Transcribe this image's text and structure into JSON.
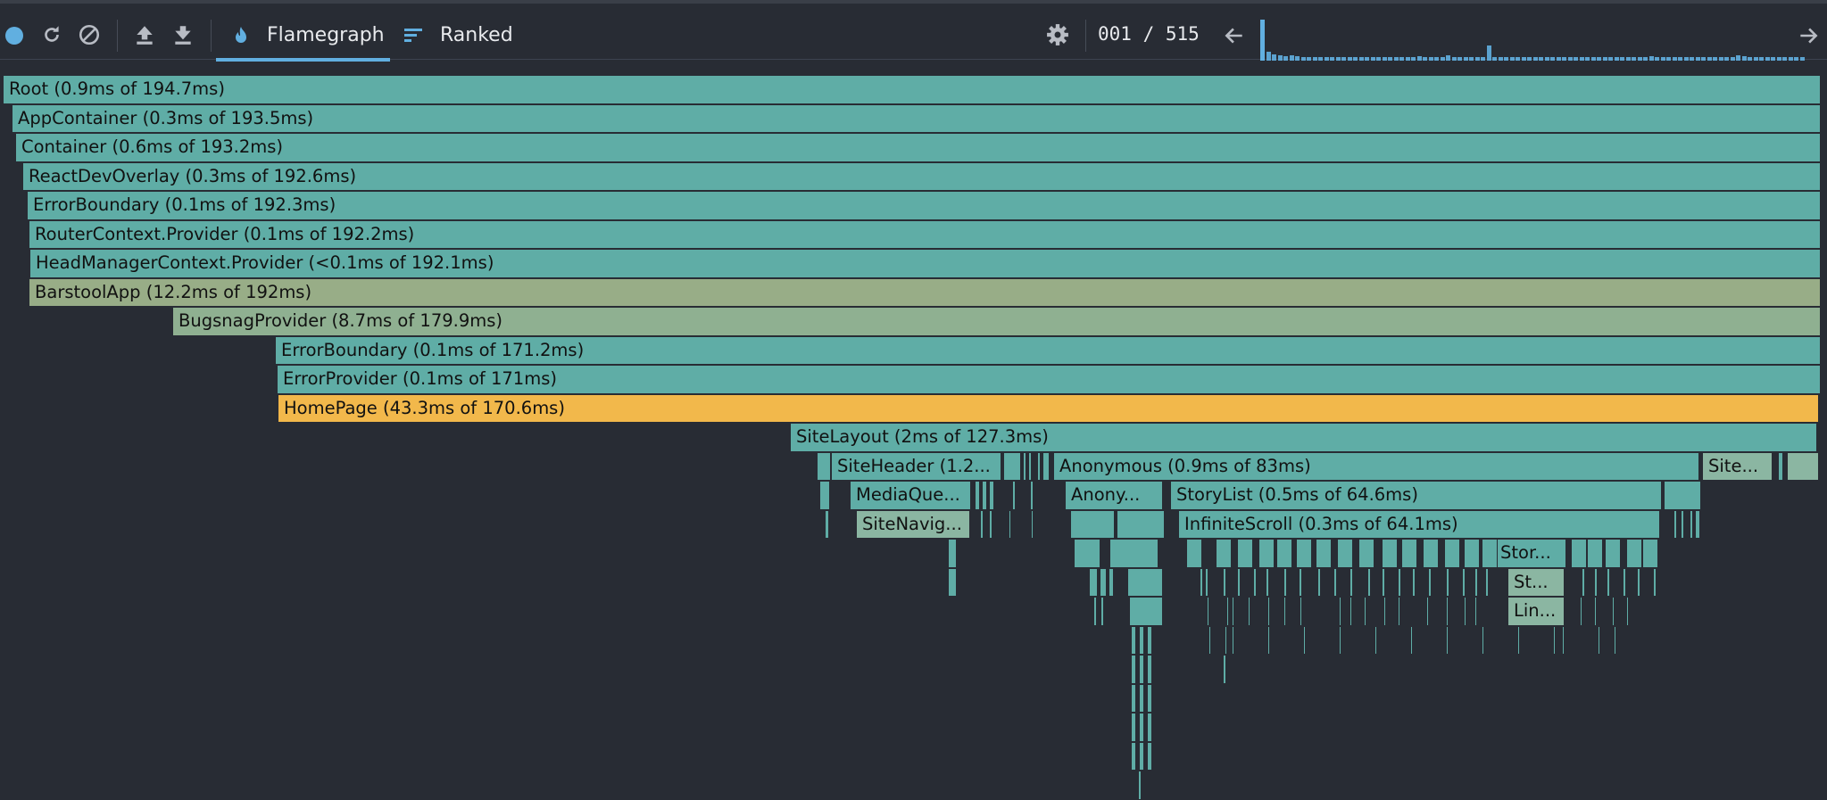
{
  "toolbar": {
    "icons": [
      "record-icon",
      "reload-icon",
      "clear-icon",
      "upload-icon",
      "download-icon",
      "flame-icon",
      "ranked-icon",
      "gear-icon",
      "arrow-left-icon",
      "arrow-right-icon"
    ],
    "tabs": [
      {
        "label": "Flamegraph",
        "active": true
      },
      {
        "label": "Ranked",
        "active": false
      }
    ],
    "commit_counter": "001 / 515"
  },
  "colors": {
    "background": "#282c34",
    "accent": "#61afe0",
    "teal": "#5fada6",
    "olive": "#98ad87",
    "sage": "#8fb091",
    "orange": "#f2b84b",
    "minor": "#8bb6a2"
  },
  "flamegraph": {
    "frames": [
      {
        "label": "Root (0.9ms of 194.7ms)"
      },
      {
        "label": "AppContainer (0.3ms of 193.5ms)"
      },
      {
        "label": "Container (0.6ms of 193.2ms)"
      },
      {
        "label": "ReactDevOverlay (0.3ms of 192.6ms)"
      },
      {
        "label": "ErrorBoundary (0.1ms of 192.3ms)"
      },
      {
        "label": "RouterContext.Provider (0.1ms of 192.2ms)"
      },
      {
        "label": "HeadManagerContext.Provider (<0.1ms of 192.1ms)"
      },
      {
        "label": "BarstoolApp (12.2ms of 192ms)"
      },
      {
        "label": "BugsnagProvider (8.7ms of 179.9ms)"
      },
      {
        "label": "ErrorBoundary (0.1ms of 171.2ms)"
      },
      {
        "label": "ErrorProvider (0.1ms of 171ms)"
      },
      {
        "label": "HomePage (43.3ms of 170.6ms)"
      },
      {
        "label": "SiteLayout (2ms of 127.3ms)"
      },
      {
        "label": "SiteHeader (1.2..."
      },
      {
        "label": "Anonymous (0.9ms of 83ms)"
      },
      {
        "label": "Site..."
      },
      {
        "label": "MediaQue..."
      },
      {
        "label": "Anony..."
      },
      {
        "label": "StoryList (0.5ms of 64.6ms)"
      },
      {
        "label": "SiteNavig..."
      },
      {
        "label": "InfiniteScroll (0.3ms of 64.1ms)"
      },
      {
        "label": "Stor..."
      },
      {
        "label": "St..."
      },
      {
        "label": "Lin..."
      }
    ]
  }
}
